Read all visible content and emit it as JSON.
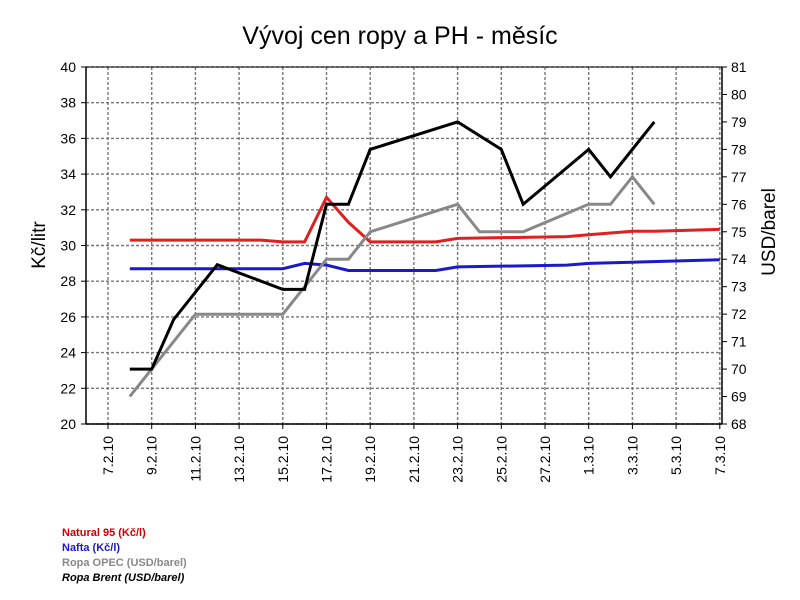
{
  "chart_data": {
    "type": "line",
    "title": "Vývoj cen ropy a PH - měsíc",
    "ylabel_left": "Kč/litr",
    "ylabel_right": "USD/barel",
    "ylim_left": [
      20,
      40
    ],
    "ylim_right": [
      68,
      81
    ],
    "yticks_left": [
      "20",
      "22",
      "24",
      "26",
      "28",
      "30",
      "32",
      "34",
      "36",
      "38",
      "40"
    ],
    "yticks_right": [
      "68",
      "69",
      "70",
      "71",
      "72",
      "73",
      "74",
      "75",
      "76",
      "77",
      "78",
      "79",
      "80",
      "81"
    ],
    "xticks": [
      "7.2.10",
      "9.2.10",
      "11.2.10",
      "13.2.10",
      "15.2.10",
      "17.2.10",
      "19.2.10",
      "21.2.10",
      "23.2.10",
      "25.2.10",
      "27.2.10",
      "1.3.10",
      "3.3.10",
      "5.3.10",
      "7.3.10"
    ],
    "grid": true,
    "legend_position": "bottom-left",
    "series": [
      {
        "name": "Natural 95 (Kč/l)",
        "axis": "left",
        "color": "#e02020",
        "x": [
          "8.2.10",
          "14.2.10",
          "15.2.10",
          "16.2.10",
          "17.2.10",
          "18.2.10",
          "19.2.10",
          "22.2.10",
          "23.2.10",
          "28.2.10",
          "1.3.10",
          "2.3.10",
          "3.3.10",
          "4.3.10",
          "7.3.10"
        ],
        "values": [
          30.3,
          30.3,
          30.2,
          30.2,
          32.7,
          31.3,
          30.2,
          30.2,
          30.4,
          30.5,
          30.6,
          30.7,
          30.8,
          30.8,
          30.9
        ]
      },
      {
        "name": "Nafta (Kč/l)",
        "axis": "left",
        "color": "#1a1acc",
        "x": [
          "8.2.10",
          "15.2.10",
          "16.2.10",
          "17.2.10",
          "18.2.10",
          "22.2.10",
          "23.2.10",
          "28.2.10",
          "1.3.10",
          "7.3.10"
        ],
        "values": [
          28.7,
          28.7,
          29.0,
          28.9,
          28.6,
          28.6,
          28.8,
          28.9,
          29.0,
          29.2
        ]
      },
      {
        "name": "Ropa OPEC (USD/barel)",
        "axis": "right",
        "color": "#888888",
        "x": [
          "8.2.10",
          "11.2.10",
          "15.2.10",
          "17.2.10",
          "18.2.10",
          "19.2.10",
          "23.2.10",
          "24.2.10",
          "26.2.10",
          "1.3.10",
          "2.3.10",
          "3.3.10",
          "4.3.10"
        ],
        "values": [
          69.0,
          72.0,
          72.0,
          74.0,
          74.0,
          75.0,
          76.0,
          75.0,
          75.0,
          76.0,
          76.0,
          77.0,
          76.0
        ]
      },
      {
        "name": "Ropa Brent (USD/barel)",
        "axis": "right",
        "color": "#000000",
        "x": [
          "8.2.10",
          "9.2.10",
          "10.2.10",
          "12.2.10",
          "15.2.10",
          "16.2.10",
          "17.2.10",
          "18.2.10",
          "19.2.10",
          "23.2.10",
          "25.2.10",
          "26.2.10",
          "1.3.10",
          "2.3.10",
          "4.3.10"
        ],
        "values": [
          70.0,
          70.0,
          71.8,
          73.8,
          72.9,
          72.9,
          76.0,
          76.0,
          78.0,
          79.0,
          78.0,
          76.0,
          78.0,
          77.0,
          79.0
        ]
      }
    ]
  }
}
